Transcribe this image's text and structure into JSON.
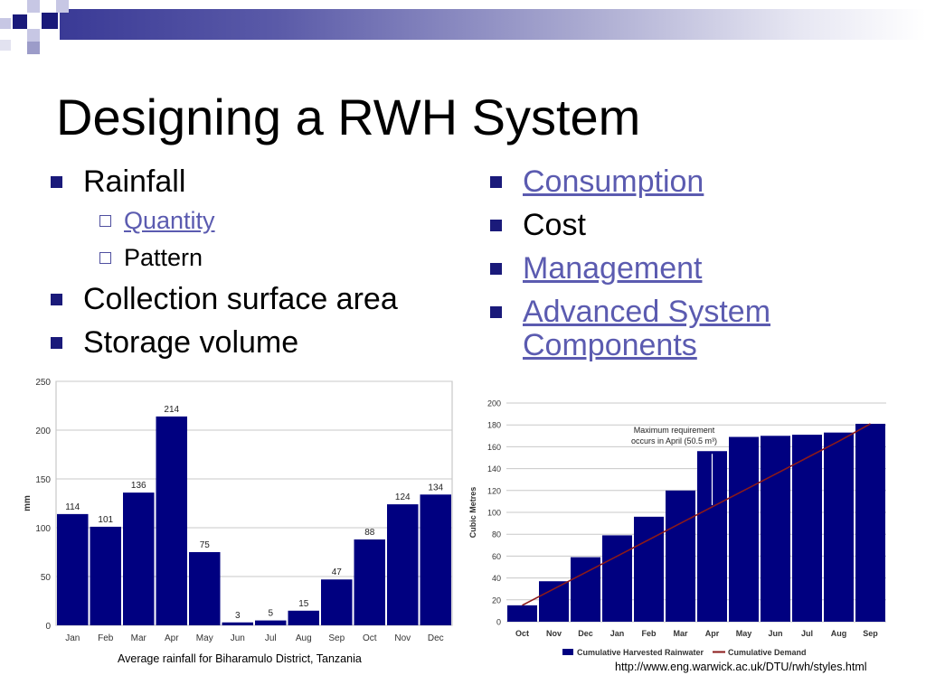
{
  "slide": {
    "title": "Designing a RWH System",
    "left_bullets": [
      {
        "label": "Rainfall",
        "sub": [
          {
            "label": "Quantity",
            "link": true
          },
          {
            "label": "Pattern",
            "link": false
          }
        ]
      },
      {
        "label": "Collection surface area"
      },
      {
        "label": "Storage volume"
      }
    ],
    "right_bullets": [
      {
        "label": "Consumption",
        "link": true
      },
      {
        "label": "Cost",
        "link": false
      },
      {
        "label": "Management",
        "link": true
      },
      {
        "label": "Advanced System Components",
        "line1": "Advanced System",
        "line2": "Components",
        "link": true
      }
    ],
    "caption_left": "Average rainfall for Biharamulo District, Tanzania",
    "caption_right": "http://www.eng.warwick.ac.uk/DTU/rwh/styles.html",
    "colors": {
      "bar": "#000080",
      "demand": "#8b1a1a",
      "accent": "#1a1a7a",
      "link": "#5b5bb0"
    }
  },
  "chart_data": [
    {
      "type": "bar",
      "categories": [
        "Jan",
        "Feb",
        "Mar",
        "Apr",
        "May",
        "Jun",
        "Jul",
        "Aug",
        "Sep",
        "Oct",
        "Nov",
        "Dec"
      ],
      "values": [
        114,
        101,
        136,
        214,
        75,
        3,
        5,
        15,
        47,
        88,
        124,
        134
      ],
      "ylabel": "mm",
      "ylim": [
        0,
        250
      ],
      "yticks": [
        0,
        50,
        100,
        150,
        200,
        250
      ],
      "grid": true
    },
    {
      "type": "bar",
      "categories": [
        "Oct",
        "Nov",
        "Dec",
        "Jan",
        "Feb",
        "Mar",
        "Apr",
        "May",
        "Jun",
        "Jul",
        "Aug",
        "Sep"
      ],
      "series": [
        {
          "name": "Cumulative Harvested Rainwater",
          "type": "bar",
          "values": [
            15,
            37,
            59,
            79,
            96,
            120,
            156,
            169,
            170,
            171,
            173,
            181
          ]
        },
        {
          "name": "Cumulative Demand",
          "type": "line",
          "values": [
            15,
            30,
            45,
            60,
            75,
            90,
            105,
            120,
            135,
            150,
            165,
            181
          ]
        }
      ],
      "ylabel": "Cubic Metres",
      "ylim": [
        0,
        200
      ],
      "yticks": [
        0,
        20,
        40,
        60,
        80,
        100,
        120,
        140,
        160,
        180,
        200
      ],
      "grid": true,
      "annotation": {
        "line1": "Maximum requirement",
        "line2": "occurs in April (50.5 m³)",
        "category": "Apr"
      }
    }
  ]
}
